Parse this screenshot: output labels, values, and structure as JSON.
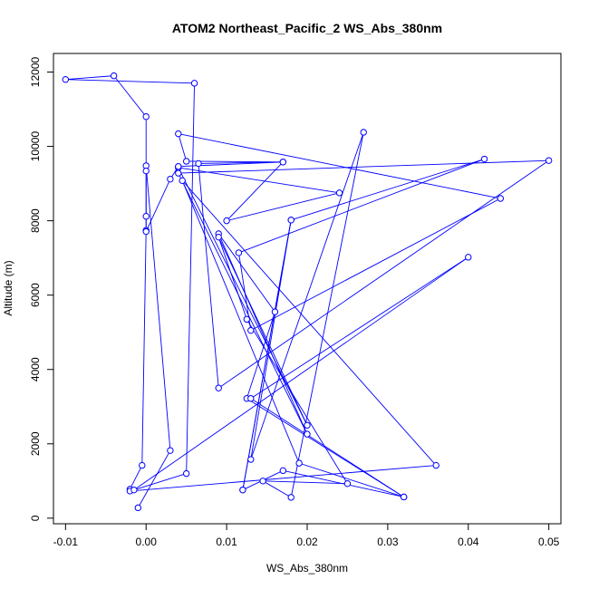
{
  "chart_data": {
    "type": "line",
    "title": "ATOM2 Northeast_Pacific_2 WS_Abs_380nm",
    "xlabel": "WS_Abs_380nm",
    "ylabel": "Altitude (m)",
    "xlim": [
      -0.0115,
      0.0515
    ],
    "ylim": [
      -150,
      12500
    ],
    "x_ticks": [
      {
        "value": -0.01,
        "label": "-0.01"
      },
      {
        "value": 0.0,
        "label": "0.00"
      },
      {
        "value": 0.01,
        "label": "0.01"
      },
      {
        "value": 0.02,
        "label": "0.02"
      },
      {
        "value": 0.03,
        "label": "0.03"
      },
      {
        "value": 0.04,
        "label": "0.04"
      },
      {
        "value": 0.05,
        "label": "0.05"
      }
    ],
    "y_ticks": [
      {
        "value": 0,
        "label": "0"
      },
      {
        "value": 2000,
        "label": "2000"
      },
      {
        "value": 4000,
        "label": "4000"
      },
      {
        "value": 6000,
        "label": "6000"
      },
      {
        "value": 8000,
        "label": "8000"
      },
      {
        "value": 10000,
        "label": "10000"
      },
      {
        "value": 12000,
        "label": "12000"
      }
    ],
    "series_color": "#0000ff",
    "grid": false,
    "legend": "none",
    "points": [
      {
        "x": -0.001,
        "y": 280
      },
      {
        "x": 0.003,
        "y": 1820
      },
      {
        "x": 0.0,
        "y": 9480
      },
      {
        "x": 0.0,
        "y": 8120
      },
      {
        "x": 0.0,
        "y": 7740
      },
      {
        "x": -0.0005,
        "y": 1420
      },
      {
        "x": -0.002,
        "y": 780
      },
      {
        "x": -0.002,
        "y": 730
      },
      {
        "x": 0.036,
        "y": 1420
      },
      {
        "x": 0.0045,
        "y": 9080
      },
      {
        "x": 0.019,
        "y": 1480
      },
      {
        "x": 0.032,
        "y": 570
      },
      {
        "x": 0.0125,
        "y": 3220
      },
      {
        "x": 0.016,
        "y": 5550
      },
      {
        "x": 0.009,
        "y": 7650
      },
      {
        "x": 0.02,
        "y": 2260
      },
      {
        "x": 0.004,
        "y": 9280
      },
      {
        "x": 0.05,
        "y": 9620
      },
      {
        "x": 0.009,
        "y": 3500
      },
      {
        "x": 0.0065,
        "y": 9540
      },
      {
        "x": 0.017,
        "y": 9580
      },
      {
        "x": 0.005,
        "y": 9600
      },
      {
        "x": 0.004,
        "y": 10340
      },
      {
        "x": 0.044,
        "y": 8600
      },
      {
        "x": 0.013,
        "y": 5050
      },
      {
        "x": 0.0115,
        "y": 7140
      },
      {
        "x": 0.042,
        "y": 9660
      },
      {
        "x": 0.018,
        "y": 8020
      },
      {
        "x": 0.013,
        "y": 1580
      },
      {
        "x": 0.027,
        "y": 10380
      },
      {
        "x": 0.018,
        "y": 560
      },
      {
        "x": 0.0145,
        "y": 1000
      },
      {
        "x": 0.025,
        "y": 930
      },
      {
        "x": 0.0125,
        "y": 5350
      },
      {
        "x": 0.009,
        "y": 7560
      },
      {
        "x": 0.02,
        "y": 2500
      },
      {
        "x": 0.004,
        "y": 9430
      },
      {
        "x": 0.024,
        "y": 8750
      },
      {
        "x": 0.01,
        "y": 8000
      },
      {
        "x": 0.017,
        "y": 9580
      },
      {
        "x": 0.004,
        "y": 9460
      },
      {
        "x": 0.003,
        "y": 9120
      },
      {
        "x": 0.0,
        "y": 7710
      },
      {
        "x": 0.0,
        "y": 9340
      },
      {
        "x": 0.0,
        "y": 10800
      },
      {
        "x": -0.004,
        "y": 11900
      },
      {
        "x": -0.01,
        "y": 11800
      },
      {
        "x": 0.006,
        "y": 11700
      },
      {
        "x": 0.005,
        "y": 1200
      },
      {
        "x": -0.0015,
        "y": 760
      },
      {
        "x": 0.04,
        "y": 7020
      },
      {
        "x": 0.013,
        "y": 3220
      },
      {
        "x": 0.032,
        "y": 570
      },
      {
        "x": 0.017,
        "y": 1280
      },
      {
        "x": 0.012,
        "y": 760
      },
      {
        "x": 0.018,
        "y": 8020
      },
      {
        "x": 0.012,
        "y": 760
      }
    ]
  }
}
